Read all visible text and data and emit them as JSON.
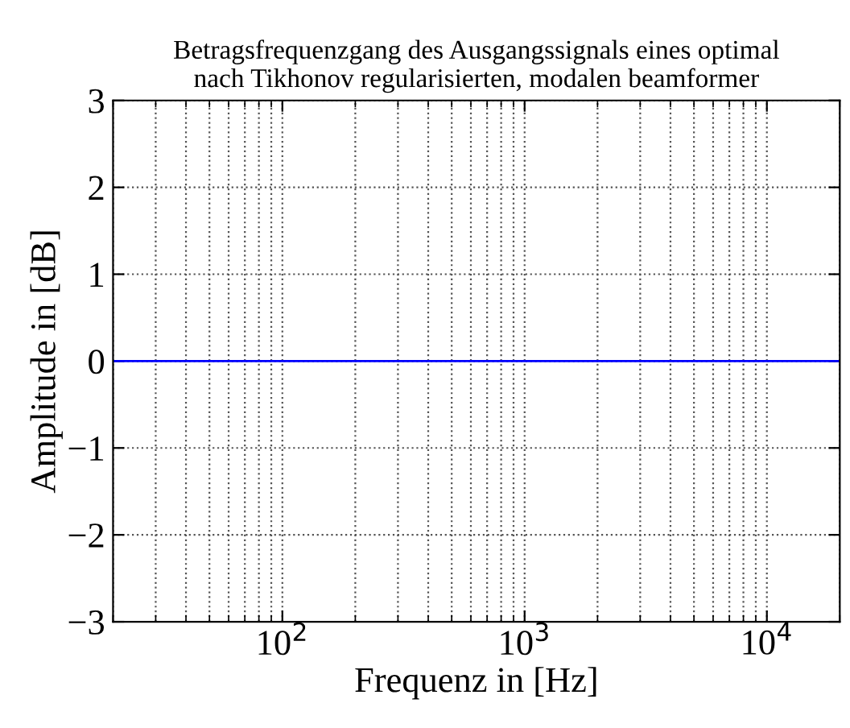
{
  "chart_data": {
    "type": "line",
    "title": "Betragsfrequenzgang des Ausgangssignals eines optimal\nnach Tikhonov regularisierten, modalen beamformer",
    "xlabel": "Frequenz in [Hz]",
    "ylabel": "Amplitude in [dB]",
    "log": "x",
    "x": [
      20,
      20000
    ],
    "series": [
      {
        "color": "#0000ff",
        "values": [
          0,
          0
        ]
      }
    ],
    "xlim": [
      20,
      20000
    ],
    "xticks": [
      {
        "value": 100,
        "label": "10$^{2}$"
      },
      {
        "value": 1000,
        "label": "10$^{3}$"
      },
      {
        "value": 10000,
        "label": "10$^{4}$"
      }
    ],
    "ylim": [
      -3,
      3
    ],
    "yticks": [
      {
        "value": -3,
        "label": "−3"
      },
      {
        "value": -2,
        "label": "−2"
      },
      {
        "value": -1,
        "label": "−1"
      },
      0,
      1,
      2,
      3
    ],
    "grid": true,
    "line_style": "solid",
    "marker": "none"
  }
}
